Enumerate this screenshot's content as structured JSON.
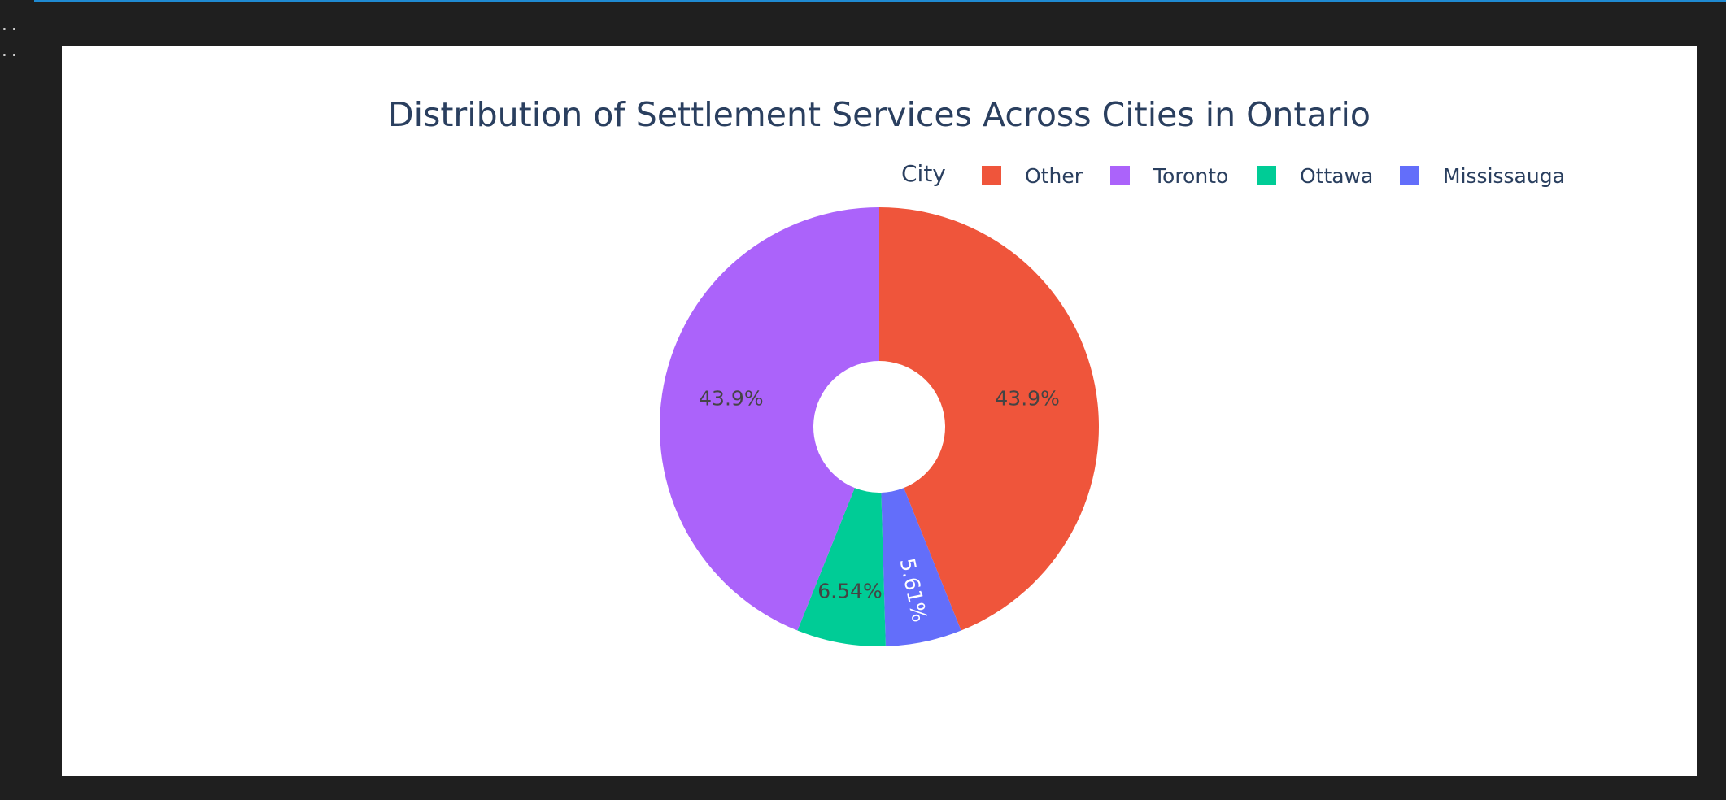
{
  "gutter": {
    "line1": "..",
    "line2": ".."
  },
  "chart_data": {
    "type": "pie",
    "hole": 0.3,
    "title": "Distribution of Settlement Services Across Cities in Ontario",
    "legend": {
      "title": "City",
      "orientation": "horizontal",
      "placement": "top-right"
    },
    "labels": [
      "Other",
      "Toronto",
      "Ottawa",
      "Mississauga"
    ],
    "values": [
      43.9,
      43.9,
      6.54,
      5.61
    ],
    "text_labels": [
      "43.9%",
      "43.9%",
      "6.54%",
      "5.61%"
    ],
    "colors": [
      "#EF553B",
      "#AB63FA",
      "#00CC96",
      "#636EFA"
    ],
    "label_colors": [
      "#444444",
      "#444444",
      "#444444",
      "#ffffff"
    ],
    "slice_order": [
      "Other",
      "Mississauga",
      "Ottawa",
      "Toronto"
    ],
    "direction": "clockwise",
    "start": "top"
  }
}
